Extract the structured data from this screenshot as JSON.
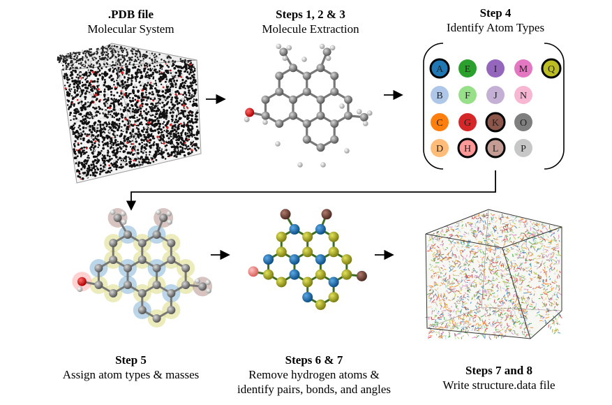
{
  "steps": [
    {
      "title": ".PDB file",
      "lines": [
        "Molecular System"
      ]
    },
    {
      "title": "Steps 1, 2 & 3",
      "lines": [
        "Molecule Extraction"
      ]
    },
    {
      "title": "Step 4",
      "lines": [
        "Identify Atom Types"
      ]
    },
    {
      "title": "Step 5",
      "lines": [
        "Assign atom types & masses"
      ]
    },
    {
      "title": "Steps 6 & 7",
      "lines": [
        "Remove hydrogen atoms &",
        "identify pairs, bonds, and angles"
      ]
    },
    {
      "title": "Steps 7 and 8",
      "lines": [
        "Write structure.data file"
      ]
    }
  ],
  "atom_types": [
    {
      "label": "A",
      "color": "#1f77b4",
      "outlined": true
    },
    {
      "label": "E",
      "color": "#2ca02c",
      "outlined": false
    },
    {
      "label": "I",
      "color": "#9467bd",
      "outlined": false
    },
    {
      "label": "M",
      "color": "#e377c2",
      "outlined": false
    },
    {
      "label": "Q",
      "color": "#bcbd22",
      "outlined": true
    },
    {
      "label": "B",
      "color": "#aec7e8",
      "outlined": false
    },
    {
      "label": "F",
      "color": "#98df8a",
      "outlined": false
    },
    {
      "label": "J",
      "color": "#c5b0d5",
      "outlined": false
    },
    {
      "label": "N",
      "color": "#f7b6d2",
      "outlined": false
    },
    {
      "label": "C",
      "color": "#ff7f0e",
      "outlined": false
    },
    {
      "label": "G",
      "color": "#d62728",
      "outlined": false
    },
    {
      "label": "K",
      "color": "#8c564b",
      "outlined": true
    },
    {
      "label": "O",
      "color": "#7f7f7f",
      "outlined": false
    },
    {
      "label": "D",
      "color": "#ffbb78",
      "outlined": false
    },
    {
      "label": "H",
      "color": "#ff9896",
      "outlined": true
    },
    {
      "label": "L",
      "color": "#c49c94",
      "outlined": true
    },
    {
      "label": "P",
      "color": "#c7c7c7",
      "outlined": false
    }
  ]
}
